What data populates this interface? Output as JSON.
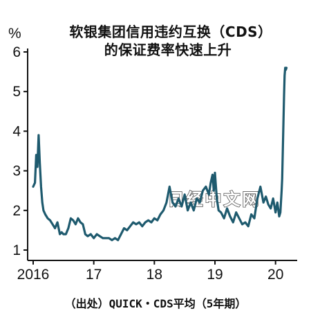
{
  "title_line1": "软银集团信用违约互换（CDS）",
  "title_line2": "的保证费率快速上升",
  "source": "（出处）QUICK・CDS平均（5年期）",
  "watermark": "日经中文网",
  "line_color": "#1e5a6e",
  "chart_data": {
    "type": "line",
    "unit_label": "%",
    "x_tick_labels": [
      "2016",
      "17",
      "18",
      "19",
      "20"
    ],
    "y_tick_labels": [
      "1",
      "2",
      "3",
      "4",
      "5",
      "6"
    ],
    "ylim": [
      1,
      6
    ],
    "xlim": [
      2016.0,
      2020.3
    ],
    "grid": false,
    "series": [
      {
        "x": [
          2016.0,
          2016.03,
          2016.05,
          2016.07,
          2016.09,
          2016.11,
          2016.13,
          2016.15,
          2016.17,
          2016.2,
          2016.24,
          2016.28,
          2016.32,
          2016.36,
          2016.4,
          2016.44,
          2016.47,
          2016.5,
          2016.54,
          2016.58,
          2016.62,
          2016.66,
          2016.7,
          2016.74,
          2016.78,
          2016.82,
          2016.86,
          2016.9,
          2016.95,
          2017.0,
          2017.05,
          2017.1,
          2017.15,
          2017.2,
          2017.25,
          2017.3,
          2017.35,
          2017.4,
          2017.45,
          2017.5,
          2017.55,
          2017.6,
          2017.65,
          2017.7,
          2017.75,
          2017.8,
          2017.85,
          2017.9,
          2017.95,
          2018.0,
          2018.05,
          2018.1,
          2018.15,
          2018.2,
          2018.25,
          2018.3,
          2018.35,
          2018.4,
          2018.45,
          2018.5,
          2018.55,
          2018.6,
          2018.65,
          2018.7,
          2018.75,
          2018.8,
          2018.85,
          2018.9,
          2018.93,
          2018.96,
          2018.98,
          2019.0,
          2019.03,
          2019.06,
          2019.1,
          2019.15,
          2019.2,
          2019.25,
          2019.3,
          2019.35,
          2019.4,
          2019.45,
          2019.5,
          2019.55,
          2019.6,
          2019.65,
          2019.7,
          2019.75,
          2019.8,
          2019.84,
          2019.88,
          2019.92,
          2019.96,
          2020.0,
          2020.03,
          2020.06,
          2020.08,
          2020.1,
          2020.11,
          2020.12,
          2020.13,
          2020.14,
          2020.15,
          2020.16,
          2020.17,
          2020.18
        ],
        "y": [
          2.6,
          2.7,
          3.4,
          3.1,
          3.9,
          3.2,
          2.6,
          2.2,
          2.0,
          1.9,
          1.8,
          1.75,
          1.65,
          1.55,
          1.7,
          1.4,
          1.45,
          1.4,
          1.4,
          1.55,
          1.8,
          1.75,
          1.65,
          1.8,
          1.7,
          1.65,
          1.4,
          1.35,
          1.4,
          1.3,
          1.4,
          1.35,
          1.3,
          1.3,
          1.3,
          1.25,
          1.3,
          1.25,
          1.4,
          1.55,
          1.5,
          1.6,
          1.7,
          1.65,
          1.7,
          1.6,
          1.7,
          1.75,
          1.7,
          1.8,
          1.75,
          1.9,
          2.0,
          2.2,
          2.6,
          2.2,
          2.1,
          2.3,
          2.1,
          2.4,
          2.0,
          2.2,
          2.0,
          2.3,
          2.2,
          2.5,
          2.6,
          2.4,
          2.7,
          2.9,
          2.5,
          2.95,
          2.3,
          2.0,
          1.95,
          1.8,
          2.05,
          1.85,
          1.7,
          1.95,
          1.8,
          1.65,
          1.7,
          1.6,
          1.9,
          1.8,
          2.3,
          2.6,
          2.2,
          2.35,
          2.15,
          2.05,
          2.3,
          1.95,
          2.2,
          1.85,
          1.95,
          2.5,
          2.8,
          3.5,
          4.2,
          4.9,
          5.4,
          5.6,
          5.55,
          5.6
        ]
      }
    ]
  }
}
